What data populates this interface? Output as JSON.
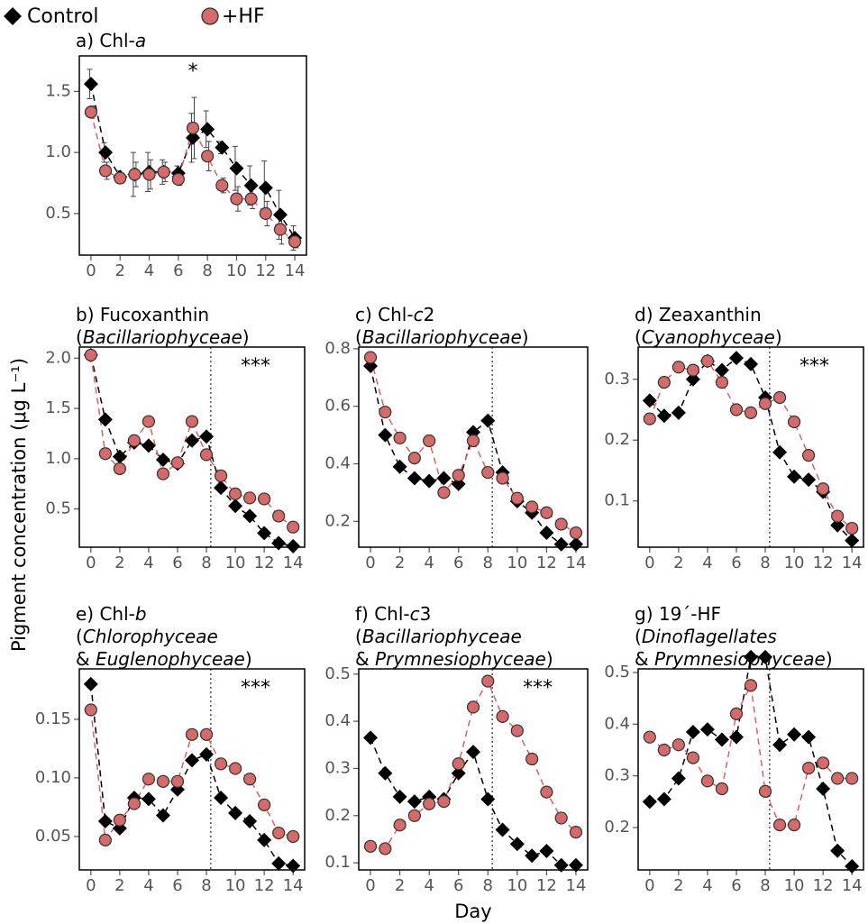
{
  "chart_data": [
    {
      "type": "line",
      "title": [
        [
          "a) Chl-",
          "a"
        ]
      ],
      "annotation": "*",
      "x": [
        0,
        1,
        2,
        3,
        4,
        5,
        6,
        7,
        8,
        9,
        10,
        11,
        12,
        13,
        14
      ],
      "xlim": [
        -0.8,
        14.8
      ],
      "xticks": [
        0,
        2,
        4,
        6,
        8,
        10,
        12,
        14
      ],
      "ylim": [
        0.16,
        1.79
      ],
      "yticks": [
        0.5,
        {
          "value": 1,
          "label": "1.0"
        },
        1.5
      ],
      "series": [
        {
          "name": "Control",
          "color": "#000000",
          "values": [
            1.56,
            1.0,
            0.8,
            0.82,
            0.84,
            0.84,
            0.83,
            1.12,
            1.19,
            1.04,
            0.87,
            0.73,
            0.71,
            0.49,
            0.3
          ],
          "errors": [
            0.12,
            0.08,
            0.05,
            0.18,
            0.16,
            0.1,
            0.06,
            0.2,
            0.15,
            0.05,
            0.18,
            0.16,
            0.22,
            0.2,
            0.1
          ]
        },
        {
          "name": "+HF",
          "color": "#d46a6a",
          "values": [
            1.33,
            0.85,
            0.79,
            0.82,
            0.82,
            0.84,
            0.78,
            1.2,
            0.97,
            0.73,
            0.62,
            0.62,
            0.5,
            0.37,
            0.27
          ],
          "errors": [
            0.05,
            0.07,
            0.04,
            0.1,
            0.12,
            0.08,
            0.05,
            0.25,
            0.12,
            0.06,
            0.1,
            0.08,
            0.1,
            0.12,
            0.05
          ]
        }
      ]
    },
    {
      "type": "line",
      "title": [
        [
          "b) Fucoxanthin"
        ],
        [
          "(",
          "Bacillariophyceae",
          ")"
        ]
      ],
      "annotation": "***",
      "vline": 8.3,
      "ylabel": "Pigment concentration (μg L⁻¹)",
      "x": [
        0,
        1,
        2,
        3,
        4,
        5,
        6,
        7,
        8,
        9,
        10,
        11,
        12,
        13,
        14
      ],
      "xlim": [
        -0.8,
        14.8
      ],
      "xticks": [
        0,
        2,
        4,
        6,
        8,
        10,
        12,
        14
      ],
      "ylim": [
        0.12,
        2.11
      ],
      "yticks": [
        0.5,
        {
          "value": 1,
          "label": "1.0"
        },
        1.5,
        {
          "value": 2,
          "label": "2.0"
        }
      ],
      "series": [
        {
          "name": "Control",
          "color": "#000000",
          "values": [
            2.03,
            1.39,
            1.02,
            1.16,
            1.13,
            0.99,
            0.95,
            1.18,
            1.22,
            0.71,
            0.53,
            0.43,
            0.26,
            0.16,
            0.13
          ]
        },
        {
          "name": "+HF",
          "color": "#d46a6a",
          "values": [
            2.03,
            1.05,
            0.9,
            1.18,
            1.37,
            0.85,
            0.96,
            1.37,
            1.04,
            0.83,
            0.65,
            0.61,
            0.6,
            0.43,
            0.32
          ]
        }
      ]
    },
    {
      "type": "line",
      "title": [
        [
          "c) Chl-",
          "c",
          "2"
        ],
        [
          "(",
          "Bacillariophyceae",
          ")"
        ]
      ],
      "vline": 8.3,
      "x": [
        0,
        1,
        2,
        3,
        4,
        5,
        6,
        7,
        8,
        9,
        10,
        11,
        12,
        13,
        14
      ],
      "xlim": [
        -0.8,
        14.8
      ],
      "xticks": [
        0,
        2,
        4,
        6,
        8,
        10,
        12,
        14
      ],
      "ylim": [
        0.11,
        0.806
      ],
      "yticks": [
        0.2,
        0.4,
        0.6,
        0.8
      ],
      "series": [
        {
          "name": "Control",
          "color": "#000000",
          "values": [
            0.74,
            0.5,
            0.39,
            0.35,
            0.34,
            0.35,
            0.33,
            0.51,
            0.55,
            0.37,
            0.27,
            0.23,
            0.16,
            0.12,
            0.12
          ]
        },
        {
          "name": "+HF",
          "color": "#d46a6a",
          "values": [
            0.77,
            0.58,
            0.49,
            0.42,
            0.48,
            0.3,
            0.36,
            0.48,
            0.37,
            0.35,
            0.28,
            0.25,
            0.23,
            0.19,
            0.16
          ]
        }
      ]
    },
    {
      "type": "line",
      "title": [
        [
          "d) Zeaxanthin"
        ],
        [
          "(",
          "Cyanophyceae",
          ")"
        ]
      ],
      "annotation": "***",
      "vline": 8.3,
      "x": [
        0,
        1,
        2,
        3,
        4,
        5,
        6,
        7,
        8,
        9,
        10,
        11,
        12,
        13,
        14
      ],
      "xlim": [
        -0.8,
        14.8
      ],
      "xticks": [
        0,
        2,
        4,
        6,
        8,
        10,
        12,
        14
      ],
      "ylim": [
        0.024,
        0.353
      ],
      "yticks": [
        0.1,
        0.2,
        0.3
      ],
      "series": [
        {
          "name": "Control",
          "color": "#000000",
          "values": [
            0.265,
            0.24,
            0.245,
            0.3,
            0.33,
            0.315,
            0.335,
            0.325,
            0.27,
            0.18,
            0.14,
            0.135,
            0.115,
            0.06,
            0.035
          ]
        },
        {
          "name": "+HF",
          "color": "#d46a6a",
          "values": [
            0.235,
            0.295,
            0.32,
            0.315,
            0.33,
            0.295,
            0.25,
            0.245,
            0.26,
            0.27,
            0.23,
            0.175,
            0.12,
            0.075,
            0.055
          ]
        }
      ]
    },
    {
      "type": "line",
      "title": [
        [
          "e) Chl-",
          "b"
        ],
        [
          "(",
          "Chlorophyceae"
        ],
        [
          "& ",
          "Euglenophyceae",
          ")"
        ]
      ],
      "annotation": "***",
      "vline": 8.3,
      "x": [
        0,
        1,
        2,
        3,
        4,
        5,
        6,
        7,
        8,
        9,
        10,
        11,
        12,
        13,
        14
      ],
      "xlim": [
        -0.8,
        14.8
      ],
      "xticks": [
        0,
        2,
        4,
        6,
        8,
        10,
        12,
        14
      ],
      "ylim": [
        0.0215,
        0.193
      ],
      "yticks": [
        0.05,
        {
          "value": 0.1,
          "label": "0.10"
        },
        0.15
      ],
      "series": [
        {
          "name": "Control",
          "color": "#000000",
          "values": [
            0.18,
            0.063,
            0.057,
            0.083,
            0.082,
            0.068,
            0.09,
            0.115,
            0.12,
            0.083,
            0.07,
            0.063,
            0.047,
            0.027,
            0.025
          ]
        },
        {
          "name": "+HF",
          "color": "#d46a6a",
          "values": [
            0.158,
            0.047,
            0.064,
            0.078,
            0.099,
            0.097,
            0.097,
            0.137,
            0.137,
            0.112,
            0.108,
            0.099,
            0.077,
            0.053,
            0.05
          ]
        }
      ]
    },
    {
      "type": "line",
      "title": [
        [
          "f) Chl-",
          "c",
          "3"
        ],
        [
          "(",
          "Bacillariophyceae"
        ],
        [
          "& ",
          "Prymnesiophyceae",
          ")"
        ]
      ],
      "annotation": "***",
      "vline": 8.3,
      "xlabel": "Day",
      "x": [
        0,
        1,
        2,
        3,
        4,
        5,
        6,
        7,
        8,
        9,
        10,
        11,
        12,
        13,
        14
      ],
      "xlim": [
        -0.8,
        14.8
      ],
      "xticks": [
        0,
        2,
        4,
        6,
        8,
        10,
        12,
        14
      ],
      "ylim": [
        0.085,
        0.511
      ],
      "yticks": [
        0.1,
        0.2,
        0.3,
        0.4,
        0.5
      ],
      "series": [
        {
          "name": "Control",
          "color": "#000000",
          "values": [
            0.365,
            0.29,
            0.24,
            0.23,
            0.24,
            0.235,
            0.29,
            0.335,
            0.235,
            0.17,
            0.14,
            0.115,
            0.125,
            0.095,
            0.095
          ]
        },
        {
          "name": "+HF",
          "color": "#d46a6a",
          "values": [
            0.135,
            0.13,
            0.18,
            0.2,
            0.225,
            0.23,
            0.31,
            0.43,
            0.485,
            0.41,
            0.38,
            0.32,
            0.25,
            0.195,
            0.165
          ]
        }
      ]
    },
    {
      "type": "line",
      "title": [
        [
          "g) 19´-HF"
        ],
        [
          "(",
          "Dinoflagellates"
        ],
        [
          "& ",
          "Prymnesiophyceae",
          ")"
        ]
      ],
      "vline": 8.3,
      "x": [
        0,
        1,
        2,
        3,
        4,
        5,
        6,
        7,
        8,
        9,
        10,
        11,
        12,
        13,
        14
      ],
      "xlim": [
        -0.8,
        14.8
      ],
      "xticks": [
        0,
        2,
        4,
        6,
        8,
        10,
        12,
        14
      ],
      "ylim": [
        0.118,
        0.507
      ],
      "yticks": [
        0.2,
        0.3,
        0.4,
        0.5
      ],
      "series": [
        {
          "name": "Control",
          "color": "#000000",
          "values": [
            0.25,
            0.255,
            0.295,
            0.385,
            0.39,
            0.37,
            0.375,
            0.53,
            0.53,
            0.36,
            0.38,
            0.375,
            0.275,
            0.155,
            0.125
          ]
        },
        {
          "name": "+HF",
          "color": "#d46a6a",
          "values": [
            0.375,
            0.35,
            0.36,
            0.335,
            0.29,
            0.275,
            0.42,
            0.475,
            0.27,
            0.205,
            0.205,
            0.315,
            0.325,
            0.295,
            0.295
          ]
        }
      ]
    }
  ]
}
